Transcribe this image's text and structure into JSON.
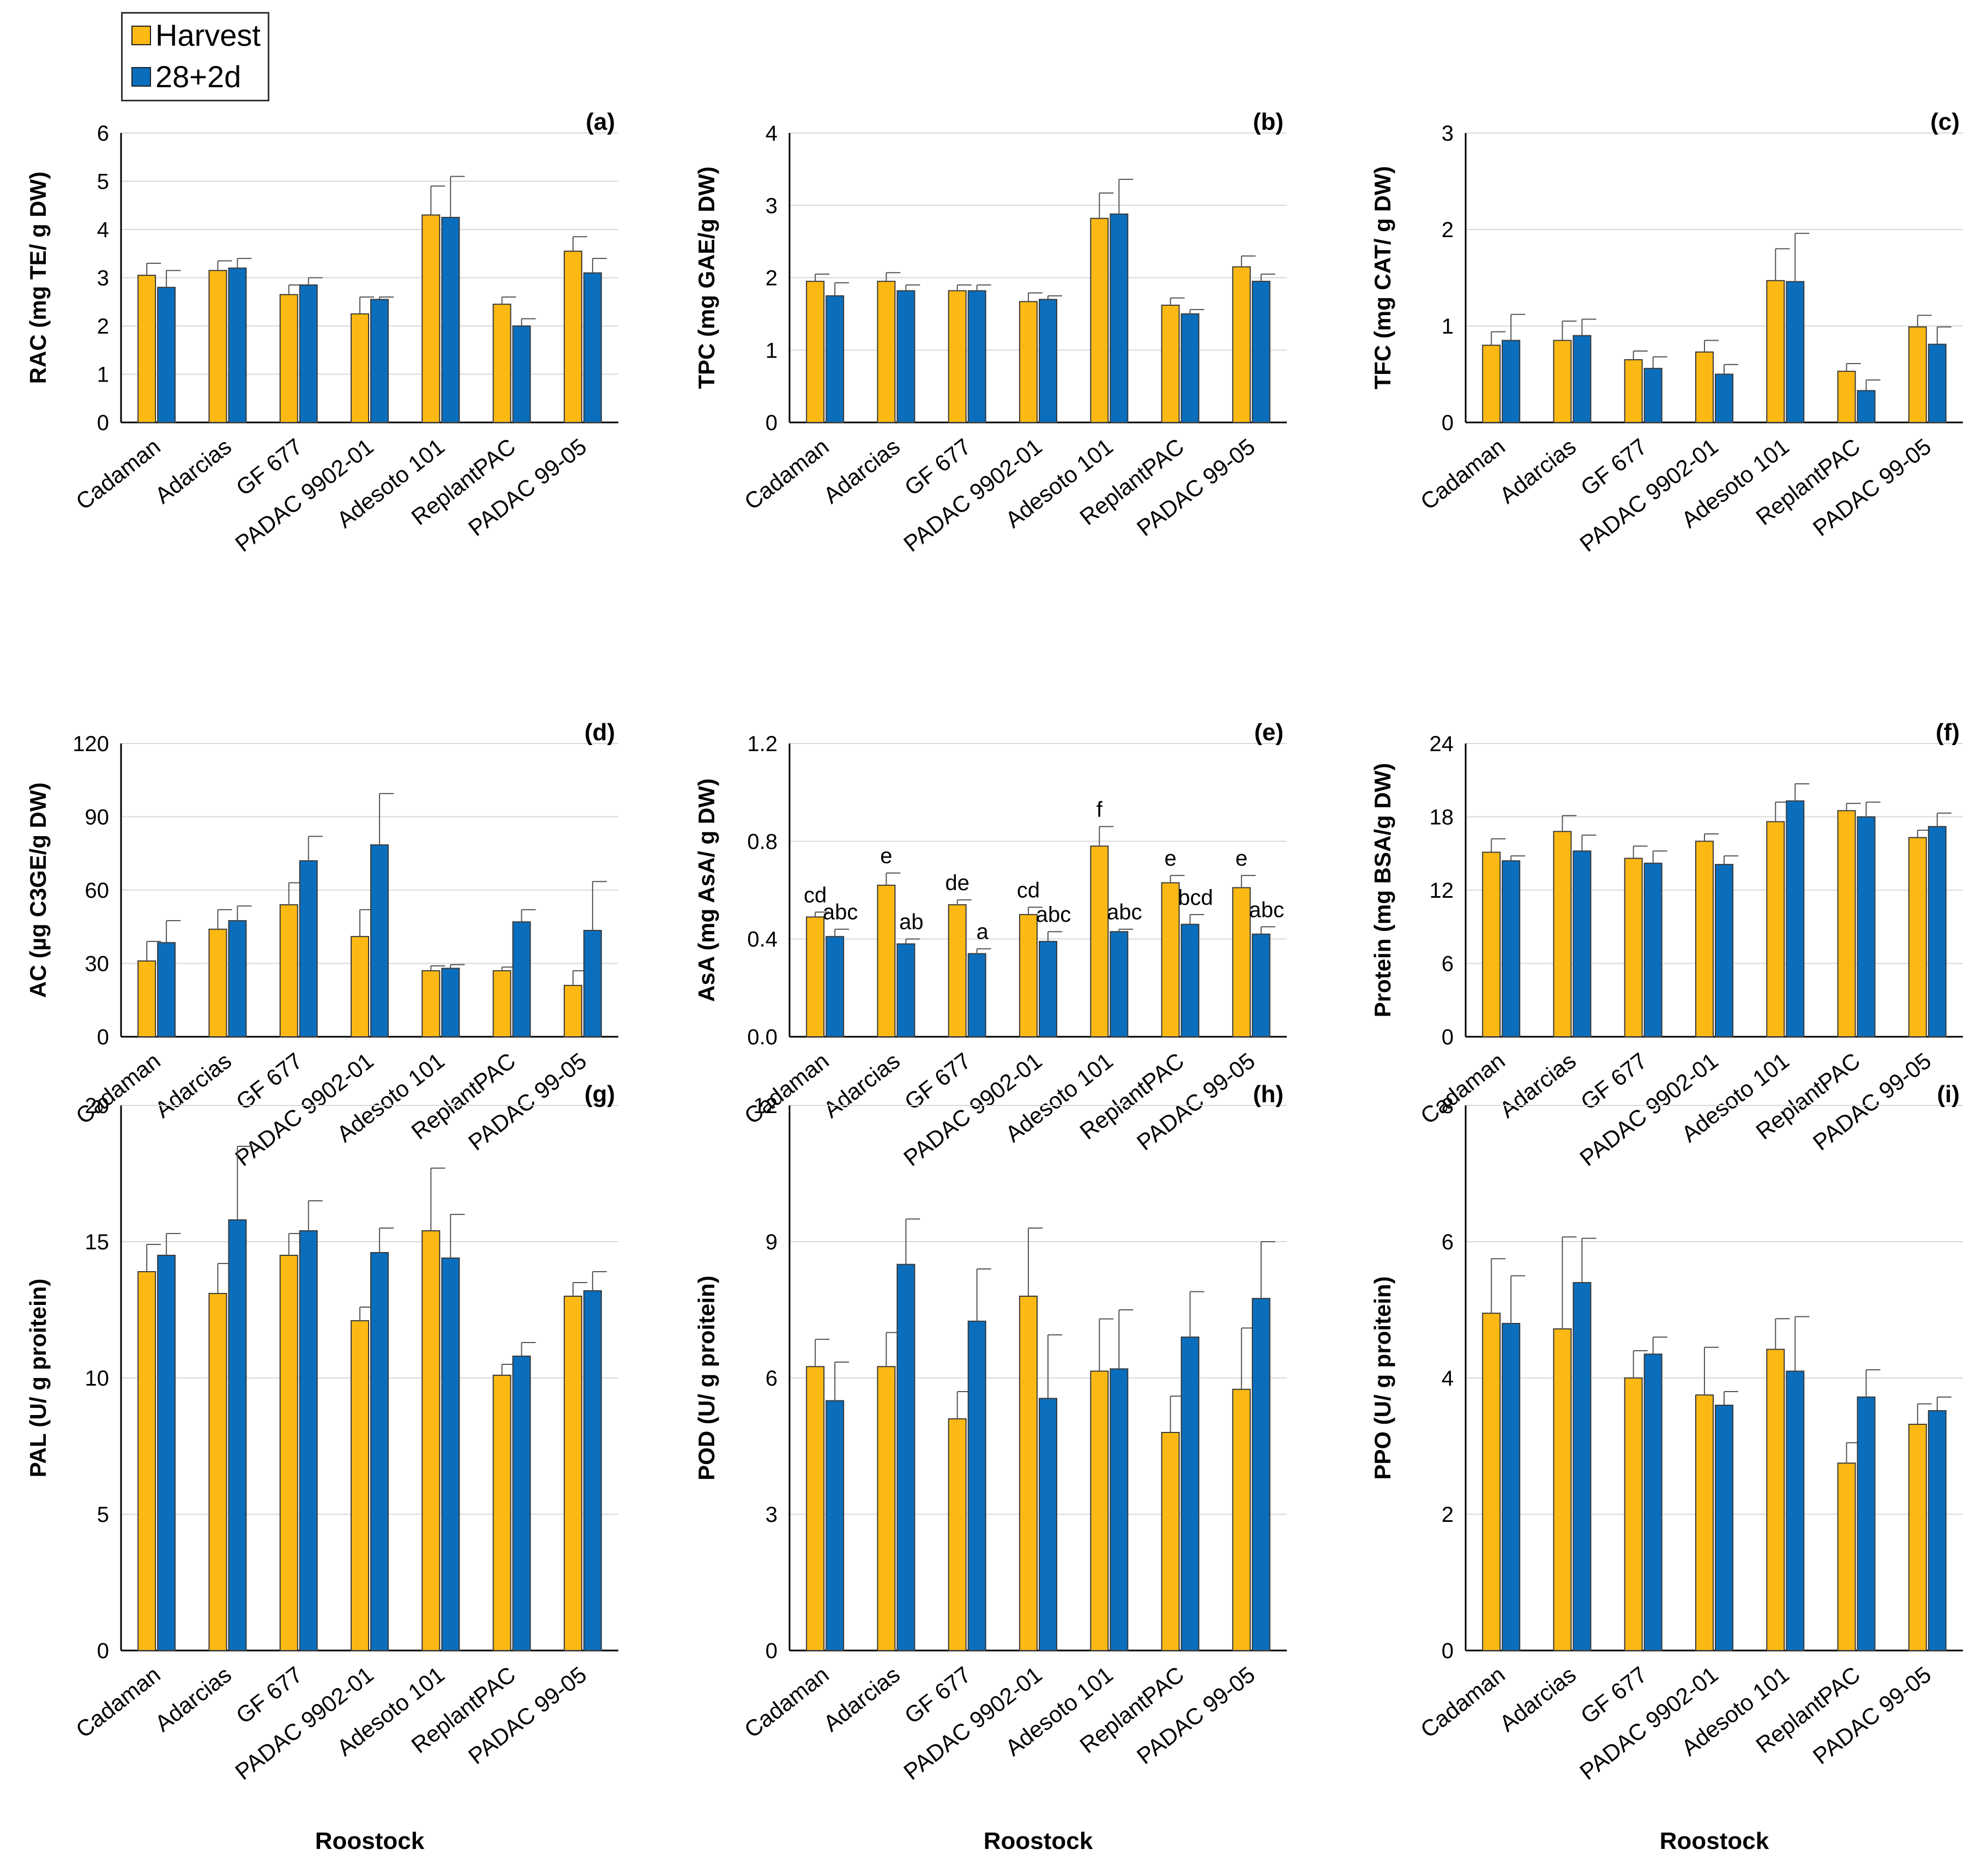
{
  "legend": [
    {
      "name": "Harvest",
      "color": "#FDB913"
    },
    {
      "name": "28+2d",
      "color": "#0A6EBD"
    }
  ],
  "xlabel": "Roostock",
  "chart_data": [
    {
      "type": "bar",
      "label": "(a)",
      "ylabel": "RAC (mg TE/ g DW)",
      "categories": [
        "Cadaman",
        "Adarcias",
        "GF 677",
        "PADAC 9902-01",
        "Adesoto 101",
        "ReplantPAC",
        "PADAC 99-05"
      ],
      "ylim": [
        0,
        6
      ],
      "yticks": [
        "0",
        "1",
        "2",
        "3",
        "4",
        "5",
        "6"
      ],
      "series": [
        {
          "name": "Harvest",
          "values": [
            3.05,
            3.15,
            2.65,
            2.25,
            4.3,
            2.45,
            3.55
          ],
          "errors": [
            0.25,
            0.2,
            0.2,
            0.35,
            0.6,
            0.15,
            0.3
          ]
        },
        {
          "name": "28+2d",
          "values": [
            2.8,
            3.2,
            2.85,
            2.55,
            4.25,
            2.0,
            3.1
          ],
          "errors": [
            0.35,
            0.2,
            0.15,
            0.05,
            0.85,
            0.15,
            0.3
          ]
        }
      ],
      "annotations": []
    },
    {
      "type": "bar",
      "label": "(b)",
      "ylabel": "TPC (mg GAE/g DW)",
      "categories": [
        "Cadaman",
        "Adarcias",
        "GF 677",
        "PADAC 9902-01",
        "Adesoto 101",
        "ReplantPAC",
        "PADAC 99-05"
      ],
      "ylim": [
        0,
        4
      ],
      "yticks": [
        "0",
        "1",
        "2",
        "3",
        "4"
      ],
      "series": [
        {
          "name": "Harvest",
          "values": [
            1.95,
            1.95,
            1.82,
            1.67,
            2.82,
            1.62,
            2.15
          ],
          "errors": [
            0.1,
            0.12,
            0.08,
            0.12,
            0.35,
            0.1,
            0.15
          ]
        },
        {
          "name": "28+2d",
          "values": [
            1.75,
            1.82,
            1.82,
            1.7,
            2.88,
            1.5,
            1.95
          ],
          "errors": [
            0.18,
            0.08,
            0.08,
            0.05,
            0.48,
            0.06,
            0.1
          ]
        }
      ],
      "annotations": []
    },
    {
      "type": "bar",
      "label": "(c)",
      "ylabel": "TFC (mg CAT/ g DW)",
      "categories": [
        "Cadaman",
        "Adarcias",
        "GF 677",
        "PADAC 9902-01",
        "Adesoto 101",
        "ReplantPAC",
        "PADAC 99-05"
      ],
      "ylim": [
        0,
        3
      ],
      "yticks": [
        "0",
        "1",
        "2",
        "3"
      ],
      "series": [
        {
          "name": "Harvest",
          "values": [
            0.8,
            0.85,
            0.65,
            0.73,
            1.47,
            0.53,
            0.99
          ],
          "errors": [
            0.14,
            0.2,
            0.09,
            0.12,
            0.33,
            0.08,
            0.12
          ]
        },
        {
          "name": "28+2d",
          "values": [
            0.85,
            0.9,
            0.56,
            0.5,
            1.46,
            0.33,
            0.81
          ],
          "errors": [
            0.27,
            0.17,
            0.12,
            0.1,
            0.5,
            0.11,
            0.18
          ]
        }
      ],
      "annotations": []
    },
    {
      "type": "bar",
      "label": "(d)",
      "ylabel": "AC (µg C3GE/g DW)",
      "categories": [
        "Cadaman",
        "Adarcias",
        "GF 677",
        "PADAC 9902-01",
        "Adesoto 101",
        "ReplantPAC",
        "PADAC 99-05"
      ],
      "ylim": [
        0,
        120
      ],
      "yticks": [
        "0",
        "30",
        "60",
        "90",
        "120"
      ],
      "series": [
        {
          "name": "Harvest",
          "values": [
            31,
            44,
            54,
            41,
            27,
            27,
            21
          ],
          "errors": [
            8,
            8,
            9,
            11,
            2,
            1.5,
            6
          ]
        },
        {
          "name": "28+2d",
          "values": [
            38.5,
            47.5,
            72,
            78.5,
            28,
            47,
            43.5
          ],
          "errors": [
            9,
            6,
            10,
            21,
            1.5,
            5,
            20
          ]
        }
      ],
      "annotations": []
    },
    {
      "type": "bar",
      "label": "(e)",
      "ylabel": "AsA (mg AsA/ g DW)",
      "categories": [
        "Cadaman",
        "Adarcias",
        "GF 677",
        "PADAC 9902-01",
        "Adesoto 101",
        "ReplantPAC",
        "PADAC 99-05"
      ],
      "ylim": [
        0,
        1.2
      ],
      "yticks": [
        "0.0",
        "0.4",
        "0.8",
        "1.2"
      ],
      "series": [
        {
          "name": "Harvest",
          "values": [
            0.49,
            0.62,
            0.54,
            0.5,
            0.78,
            0.63,
            0.61
          ],
          "errors": [
            0.02,
            0.05,
            0.02,
            0.03,
            0.08,
            0.03,
            0.05
          ]
        },
        {
          "name": "28+2d",
          "values": [
            0.41,
            0.38,
            0.34,
            0.39,
            0.43,
            0.46,
            0.42
          ],
          "errors": [
            0.03,
            0.02,
            0.02,
            0.04,
            0.01,
            0.04,
            0.03
          ]
        }
      ],
      "annotations": [
        {
          "series": 0,
          "labels": [
            "cd",
            "e",
            "de",
            "cd",
            "f",
            "e",
            "e"
          ]
        },
        {
          "series": 1,
          "labels": [
            "abc",
            "ab",
            "a",
            "abc",
            "abc",
            "bcd",
            "abc"
          ]
        }
      ]
    },
    {
      "type": "bar",
      "label": "(f)",
      "ylabel": "Protein (mg BSA/g DW)",
      "categories": [
        "Cadaman",
        "Adarcias",
        "GF 677",
        "PADAC 9902-01",
        "Adesoto 101",
        "ReplantPAC",
        "PADAC 99-05"
      ],
      "ylim": [
        0,
        24
      ],
      "yticks": [
        "0",
        "6",
        "12",
        "18",
        "24"
      ],
      "series": [
        {
          "name": "Harvest",
          "values": [
            15.1,
            16.8,
            14.6,
            16.0,
            17.6,
            18.5,
            16.3
          ],
          "errors": [
            1.1,
            1.3,
            1.0,
            0.6,
            1.6,
            0.6,
            0.6
          ]
        },
        {
          "name": "28+2d",
          "values": [
            14.4,
            15.2,
            14.2,
            14.1,
            19.3,
            18.0,
            17.2
          ],
          "errors": [
            0.4,
            1.3,
            1.0,
            0.7,
            1.4,
            1.2,
            1.1
          ]
        }
      ],
      "annotations": []
    },
    {
      "type": "bar",
      "label": "(g)",
      "ylabel": "PAL (U/ g proitein)",
      "categories": [
        "Cadaman",
        "Adarcias",
        "GF 677",
        "PADAC 9902-01",
        "Adesoto 101",
        "ReplantPAC",
        "PADAC 99-05"
      ],
      "ylim": [
        0,
        20
      ],
      "yticks": [
        "0",
        "5",
        "10",
        "15",
        "20"
      ],
      "series": [
        {
          "name": "Harvest",
          "values": [
            13.9,
            13.1,
            14.5,
            12.1,
            15.4,
            10.1,
            13.0
          ],
          "errors": [
            1.0,
            1.1,
            0.8,
            0.5,
            2.3,
            0.4,
            0.5
          ]
        },
        {
          "name": "28+2d",
          "values": [
            14.5,
            15.8,
            15.4,
            14.6,
            14.4,
            10.8,
            13.2
          ],
          "errors": [
            0.8,
            2.7,
            1.1,
            0.9,
            1.6,
            0.5,
            0.7
          ]
        }
      ],
      "annotations": []
    },
    {
      "type": "bar",
      "label": "(h)",
      "ylabel": "POD (U/ g proitein)",
      "categories": [
        "Cadaman",
        "Adarcias",
        "GF 677",
        "PADAC 9902-01",
        "Adesoto 101",
        "ReplantPAC",
        "PADAC 99-05"
      ],
      "ylim": [
        0,
        12
      ],
      "yticks": [
        "0",
        "3",
        "6",
        "9",
        "12"
      ],
      "series": [
        {
          "name": "Harvest",
          "values": [
            6.25,
            6.25,
            5.1,
            7.8,
            6.15,
            4.8,
            5.75
          ],
          "errors": [
            0.6,
            0.75,
            0.6,
            1.5,
            1.15,
            0.8,
            1.35
          ]
        },
        {
          "name": "28+2d",
          "values": [
            5.5,
            8.5,
            7.25,
            5.55,
            6.2,
            6.9,
            7.75
          ],
          "errors": [
            0.85,
            1.0,
            1.15,
            1.4,
            1.3,
            1.0,
            1.25
          ]
        }
      ],
      "annotations": []
    },
    {
      "type": "bar",
      "label": "(i)",
      "ylabel": "PPO (U/ g proitein)",
      "categories": [
        "Cadaman",
        "Adarcias",
        "GF 677",
        "PADAC 9902-01",
        "Adesoto 101",
        "ReplantPAC",
        "PADAC 99-05"
      ],
      "ylim": [
        0,
        8
      ],
      "yticks": [
        "0",
        "2",
        "4",
        "6",
        "8"
      ],
      "series": [
        {
          "name": "Harvest",
          "values": [
            4.95,
            4.72,
            4.0,
            3.75,
            4.42,
            2.75,
            3.32
          ],
          "errors": [
            0.8,
            1.35,
            0.4,
            0.7,
            0.45,
            0.3,
            0.3
          ]
        },
        {
          "name": "28+2d",
          "values": [
            4.8,
            5.4,
            4.35,
            3.6,
            4.1,
            3.72,
            3.52
          ],
          "errors": [
            0.7,
            0.65,
            0.25,
            0.2,
            0.8,
            0.4,
            0.2
          ]
        }
      ],
      "annotations": []
    }
  ]
}
